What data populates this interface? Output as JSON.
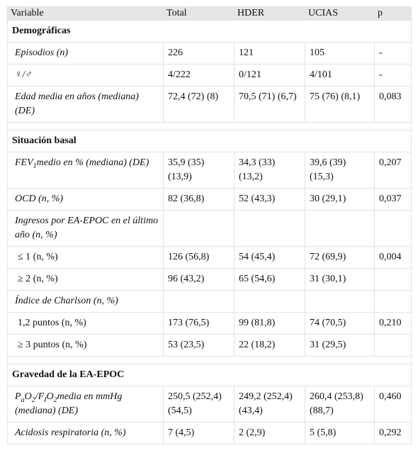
{
  "table": {
    "header": [
      "Variable",
      "Total",
      "HDER",
      "UCIAS",
      "p"
    ],
    "rows": [
      {
        "section": "Demográficas"
      },
      {
        "label": [
          "Episodios (n)"
        ],
        "level": 1,
        "cells": [
          "226",
          "121",
          "105",
          "-"
        ]
      },
      {
        "label": [
          "♀/♂"
        ],
        "level": 1,
        "cells": [
          "4/222",
          "0/121",
          "4/101",
          "-"
        ]
      },
      {
        "label": [
          "Edad media en años (mediana) (DE)"
        ],
        "level": 1,
        "cells": [
          "72,4 (72) (8)",
          "70,5 (71) (6,7)",
          "75 (76) (8,1)",
          "0,083"
        ]
      },
      {
        "section": "Situación basal"
      },
      {
        "label": [
          "FEV",
          "1",
          "medio en % (mediana) (DE)"
        ],
        "level": 1,
        "cells": [
          "35,9 (35) (13,9)",
          "34,3 (33) (13,2)",
          "39,6 (39) (15,3)",
          "0,207"
        ]
      },
      {
        "label": [
          "OCD (n, %)"
        ],
        "level": 1,
        "cells": [
          "82 (36,8)",
          "52 (43,3)",
          "30 (29,1)",
          "0,037"
        ]
      },
      {
        "label": [
          "Ingresos por EA-EPOC en el último año (n, %)"
        ],
        "level": 1,
        "cells": []
      },
      {
        "label": [
          "≤ 1 (n, %)"
        ],
        "level": 2,
        "cells": [
          "126 (56,8)",
          "54 (45,4)",
          "72 (69,9)",
          "0,004"
        ]
      },
      {
        "label": [
          "≥ 2 (n, %)"
        ],
        "level": 2,
        "cells": [
          "96 (43,2)",
          "65 (54,6)",
          "31 (30,1)"
        ]
      },
      {
        "label": [
          "Índice de Charlson (n, %)"
        ],
        "level": 1,
        "cells": []
      },
      {
        "label": [
          "1,2 puntos (n, %)"
        ],
        "level": 2,
        "cells": [
          "173 (76,5)",
          "99 (81,8)",
          "74 (70,5)",
          "0,210"
        ]
      },
      {
        "label": [
          "≥ 3 puntos (n, %)"
        ],
        "level": 2,
        "cells": [
          "53 (23,5)",
          "22 (18,2)",
          "31 (29,5)"
        ]
      },
      {
        "section": "Gravedad de la EA-EPOC"
      },
      {
        "label": [
          "P",
          "a",
          "O",
          "2",
          "/F",
          "I",
          "O",
          "2",
          "media en mmHg (mediana) (DE)"
        ],
        "level": 1,
        "cells": [
          "250,5 (252,4) (54,5)",
          "249,2 (252,4) (43,4)",
          "260,4 (253,8) (88,7)",
          "0,460"
        ]
      },
      {
        "label": [
          "Acidosis respiratoria (n, %)"
        ],
        "level": 1,
        "cells": [
          "7 (4,5)",
          "2 (2,9)",
          "5 (5,8)",
          "0,292"
        ]
      }
    ]
  }
}
